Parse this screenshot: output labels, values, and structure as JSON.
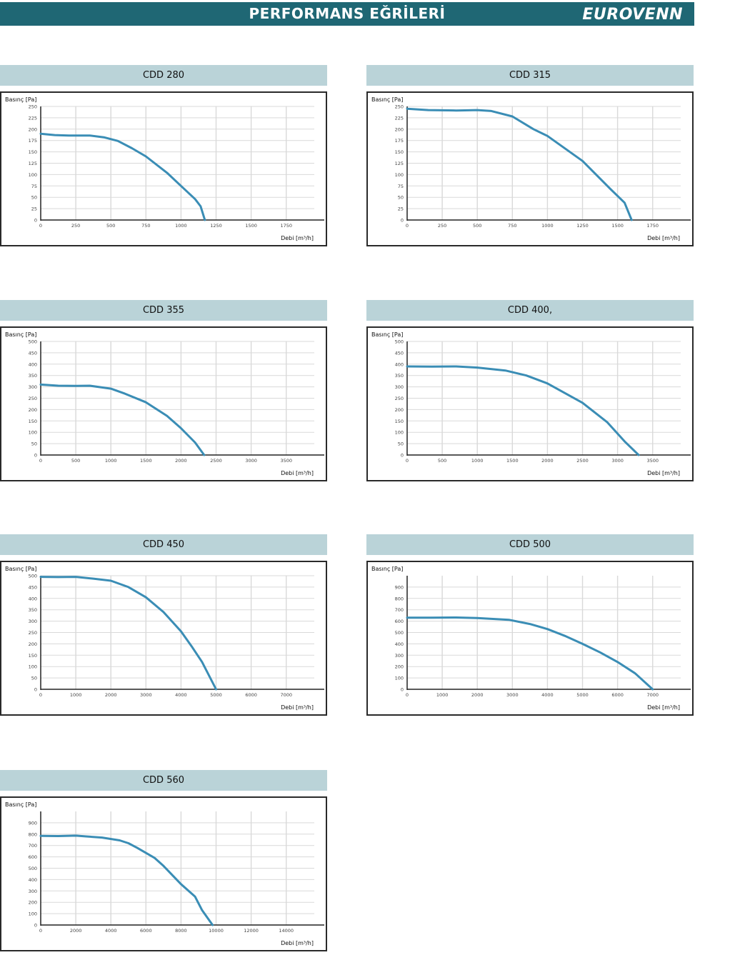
{
  "header": {
    "title": "PERFORMANS EĞRİLERİ",
    "logo": "EUROVENN",
    "bg_color": "#1f6774"
  },
  "colors": {
    "curve": "#3a8db5",
    "title_bg": "#bad3d8",
    "grid": "#d9d9d9",
    "axis": "#222222"
  },
  "chart_data": [
    {
      "type": "line",
      "title": "CDD 280",
      "ylabel": "Basınç [Pa]",
      "xlabel": "Debi [m³/h]",
      "xlim": [
        0,
        1950
      ],
      "ylim": [
        0,
        250
      ],
      "xticks": [
        0,
        250,
        500,
        750,
        1000,
        1250,
        1500,
        1750
      ],
      "yticks": [
        0,
        25,
        50,
        75,
        100,
        125,
        150,
        175,
        200,
        225,
        250
      ],
      "grid": true,
      "x": [
        0,
        100,
        200,
        350,
        450,
        550,
        650,
        750,
        900,
        1000,
        1100,
        1140,
        1170
      ],
      "y": [
        190,
        187,
        186,
        186,
        182,
        174,
        158,
        140,
        104,
        75,
        46,
        30,
        0
      ]
    },
    {
      "type": "line",
      "title": "CDD 315",
      "ylabel": "Basınç [Pa]",
      "xlabel": "Debi [m³/h]",
      "xlim": [
        0,
        1950
      ],
      "ylim": [
        0,
        250
      ],
      "xticks": [
        0,
        250,
        500,
        750,
        1000,
        1250,
        1500,
        1750
      ],
      "yticks": [
        0,
        25,
        50,
        75,
        100,
        125,
        150,
        175,
        200,
        225,
        250
      ],
      "grid": true,
      "x": [
        0,
        150,
        350,
        500,
        600,
        750,
        900,
        1000,
        1250,
        1450,
        1550,
        1600
      ],
      "y": [
        245,
        242,
        241,
        242,
        240,
        228,
        200,
        185,
        130,
        68,
        38,
        0
      ]
    },
    {
      "type": "line",
      "title": "CDD 355",
      "ylabel": "Basınç [Pa]",
      "xlabel": "Debi [m³/h]",
      "xlim": [
        0,
        3900
      ],
      "ylim": [
        0,
        500
      ],
      "xticks": [
        0,
        500,
        1000,
        1500,
        2000,
        2500,
        3000,
        3500
      ],
      "yticks": [
        0,
        50,
        100,
        150,
        200,
        250,
        300,
        350,
        400,
        450,
        500
      ],
      "grid": true,
      "x": [
        0,
        250,
        500,
        700,
        1000,
        1200,
        1500,
        1800,
        2000,
        2200,
        2330
      ],
      "y": [
        310,
        305,
        304,
        305,
        292,
        270,
        232,
        172,
        118,
        55,
        0
      ]
    },
    {
      "type": "line",
      "title": "CDD 400,",
      "ylabel": "Basınç [Pa]",
      "xlabel": "Debi [m³/h]",
      "xlim": [
        0,
        3900
      ],
      "ylim": [
        0,
        500
      ],
      "xticks": [
        0,
        500,
        1000,
        1500,
        2000,
        2500,
        3000,
        3500
      ],
      "yticks": [
        0,
        50,
        100,
        150,
        200,
        250,
        300,
        350,
        400,
        450,
        500
      ],
      "grid": true,
      "x": [
        0,
        350,
        700,
        1000,
        1400,
        1700,
        2000,
        2500,
        2850,
        3100,
        3300
      ],
      "y": [
        390,
        389,
        390,
        385,
        372,
        350,
        315,
        230,
        145,
        60,
        0
      ]
    },
    {
      "type": "line",
      "title": "CDD 450",
      "ylabel": "Basınç [Pa]",
      "xlabel": "Debi [m³/h]",
      "xlim": [
        0,
        7800
      ],
      "ylim": [
        0,
        500
      ],
      "xticks": [
        0,
        1000,
        2000,
        3000,
        4000,
        5000,
        6000,
        7000
      ],
      "yticks": [
        0,
        50,
        100,
        150,
        200,
        250,
        300,
        350,
        400,
        450,
        500
      ],
      "grid": true,
      "x": [
        0,
        500,
        1000,
        1500,
        2000,
        2500,
        3000,
        3500,
        4000,
        4300,
        4600,
        5000
      ],
      "y": [
        495,
        494,
        495,
        487,
        478,
        450,
        405,
        340,
        255,
        190,
        120,
        0
      ]
    },
    {
      "type": "line",
      "title": "CDD 500",
      "ylabel": "Basınç [Pa]",
      "xlabel": "Debi [m³/h]",
      "xlim": [
        0,
        7800
      ],
      "ylim": [
        0,
        1000
      ],
      "xticks": [
        0,
        1000,
        2000,
        3000,
        4000,
        5000,
        6000,
        7000
      ],
      "yticks": [
        0,
        100,
        200,
        300,
        400,
        500,
        600,
        700,
        800,
        900
      ],
      "grid": true,
      "x": [
        0,
        700,
        1400,
        2000,
        2900,
        3500,
        4000,
        4500,
        5000,
        5500,
        6000,
        6500,
        7000
      ],
      "y": [
        630,
        630,
        632,
        627,
        612,
        575,
        530,
        470,
        400,
        325,
        240,
        140,
        0
      ]
    },
    {
      "type": "line",
      "title": "CDD 560",
      "ylabel": "Basınç [Pa]",
      "xlabel": "Debi [m³/h]",
      "xlim": [
        0,
        15600
      ],
      "ylim": [
        0,
        1000
      ],
      "xticks": [
        0,
        2000,
        4000,
        6000,
        8000,
        10000,
        12000,
        14000
      ],
      "yticks": [
        0,
        100,
        200,
        300,
        400,
        500,
        600,
        700,
        800,
        900
      ],
      "grid": true,
      "x": [
        0,
        1000,
        2000,
        2600,
        3500,
        4500,
        5000,
        5500,
        6500,
        7000,
        8000,
        8800,
        9200,
        9800
      ],
      "y": [
        785,
        783,
        787,
        780,
        770,
        745,
        720,
        680,
        590,
        520,
        360,
        250,
        130,
        0
      ]
    }
  ]
}
